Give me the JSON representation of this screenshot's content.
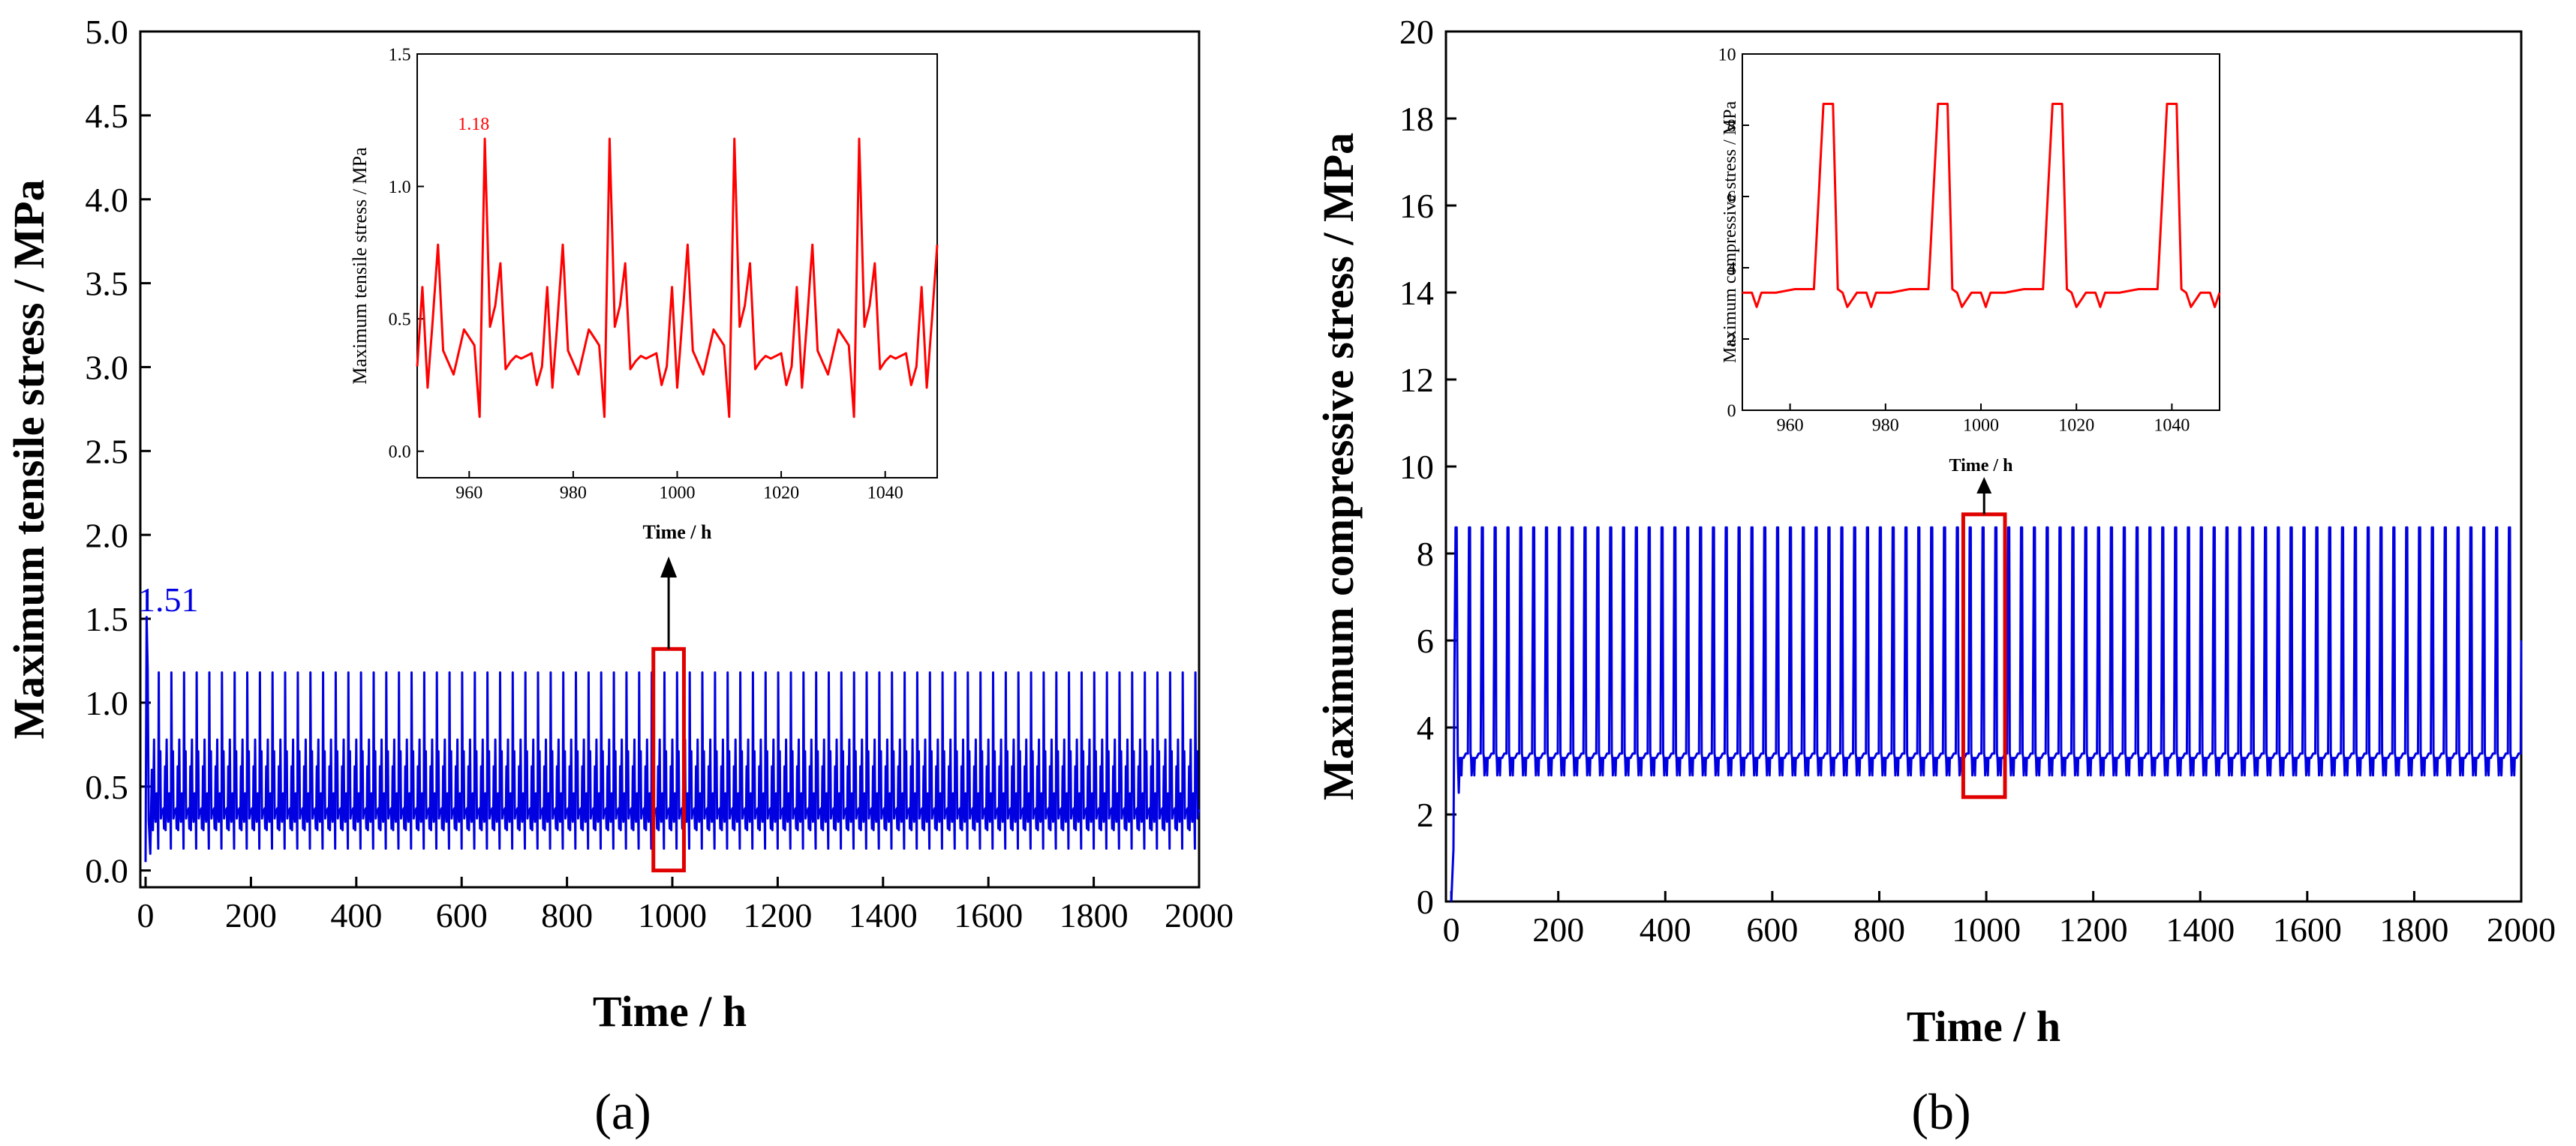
{
  "figure": {
    "panel_a_label": "(a)",
    "panel_b_label": "(b)",
    "colors": {
      "main_series": "#0000e0",
      "inset_series": "#ff0000",
      "highlight_box": "#e00000",
      "axis": "#000000"
    }
  },
  "chart_data": [
    {
      "id": "a-main",
      "type": "line",
      "title": "",
      "xlabel": "Time / h",
      "ylabel": "Maximum tensile stress / MPa",
      "xlim": [
        -10,
        2000
      ],
      "ylim": [
        -0.1,
        5.0
      ],
      "xticks": [
        0,
        200,
        400,
        600,
        800,
        1000,
        1200,
        1400,
        1600,
        1800,
        2000
      ],
      "yticks": [
        0.0,
        0.5,
        1.0,
        1.5,
        2.0,
        2.5,
        3.0,
        3.5,
        4.0,
        4.5,
        5.0
      ],
      "ytick_labels": [
        "0.0",
        "0.5",
        "1.0",
        "1.5",
        "2.0",
        "2.5",
        "3.0",
        "3.5",
        "4.0",
        "4.5",
        "5.0"
      ],
      "annotation": {
        "text": "1.51",
        "x": 0,
        "y": 1.51
      },
      "series": [
        {
          "name": "Maximum tensile stress",
          "period": 24,
          "initial_peak": 1.51,
          "cycle_times": [
            0,
            1,
            2,
            3,
            5,
            7,
            9,
            10,
            11,
            12,
            13,
            14,
            15,
            16,
            17,
            18,
            20,
            21,
            22,
            23,
            24
          ],
          "cycle_values": [
            0.24,
            0.5,
            0.78,
            0.38,
            0.29,
            0.46,
            0.4,
            0.13,
            1.18,
            0.47,
            0.55,
            0.71,
            0.31,
            0.34,
            0.36,
            0.35,
            0.37,
            0.25,
            0.32,
            0.62,
            0.24
          ]
        }
      ],
      "highlight": {
        "x": [
          964,
          1022
        ],
        "y": [
          0.0,
          1.32
        ]
      }
    },
    {
      "id": "a-inset",
      "type": "line",
      "xlabel": "Time / h",
      "ylabel": "Maximum tensile stress / MPa",
      "xlim": [
        950,
        1050
      ],
      "ylim": [
        -0.1,
        1.5
      ],
      "xticks": [
        960,
        980,
        1000,
        1020,
        1040
      ],
      "yticks": [
        0.0,
        0.5,
        1.0,
        1.5
      ],
      "ytick_labels": [
        "0.0",
        "0.5",
        "1.0",
        "1.5"
      ],
      "annotation": {
        "text": "1.18",
        "x": 961,
        "y": 1.18
      },
      "series": [
        {
          "name": "Maximum tensile stress (zoom)",
          "period": 24,
          "phase": 952,
          "cycle_times": [
            0,
            1,
            2,
            3,
            5,
            7,
            9,
            10,
            11,
            12,
            13,
            14,
            15,
            16,
            17,
            18,
            20,
            21,
            22,
            23,
            24
          ],
          "cycle_values": [
            0.24,
            0.5,
            0.78,
            0.38,
            0.29,
            0.46,
            0.4,
            0.13,
            1.18,
            0.47,
            0.55,
            0.71,
            0.31,
            0.34,
            0.36,
            0.35,
            0.37,
            0.25,
            0.32,
            0.62,
            0.24
          ]
        }
      ]
    },
    {
      "id": "b-main",
      "type": "line",
      "title": "",
      "xlabel": "Time / h",
      "ylabel": "Maximum compressive stress / MPa",
      "xlim": [
        -10,
        2000
      ],
      "ylim": [
        0,
        20
      ],
      "xticks": [
        0,
        200,
        400,
        600,
        800,
        1000,
        1200,
        1400,
        1600,
        1800,
        2000
      ],
      "yticks": [
        0,
        2,
        4,
        6,
        8,
        10,
        12,
        14,
        16,
        18,
        20
      ],
      "ytick_labels": [
        "0",
        "2",
        "4",
        "6",
        "8",
        "10",
        "12",
        "14",
        "16",
        "18",
        "20"
      ],
      "series": [
        {
          "name": "Maximum compressive stress",
          "period": 24,
          "startup_dip": 2.5,
          "cycle_times": [
            0,
            1,
            2,
            3,
            5,
            9,
            13,
            15,
            17,
            18,
            19,
            20,
            22,
            24
          ],
          "cycle_values": [
            3.3,
            2.9,
            3.3,
            3.3,
            3.3,
            3.4,
            3.4,
            8.6,
            8.6,
            3.4,
            3.3,
            2.9,
            3.3,
            3.3
          ]
        }
      ],
      "highlight": {
        "x": [
          957,
          1035
        ],
        "y": [
          2.4,
          8.9
        ]
      }
    },
    {
      "id": "b-inset",
      "type": "line",
      "xlabel": "Time / h",
      "ylabel": "Maximum compressive stress / MPa",
      "xlim": [
        950,
        1050
      ],
      "ylim": [
        0,
        10
      ],
      "xticks": [
        960,
        980,
        1000,
        1020,
        1040
      ],
      "yticks": [
        0,
        2,
        4,
        6,
        8,
        10
      ],
      "ytick_labels": [
        "0",
        "2",
        "4",
        "6",
        "8",
        "10"
      ],
      "series": [
        {
          "name": "Maximum compressive stress (zoom)",
          "period": 24,
          "phase": 952,
          "cycle_times": [
            0,
            1,
            2,
            3,
            5,
            9,
            13,
            15,
            17,
            18,
            19,
            20,
            22,
            24
          ],
          "cycle_values": [
            3.3,
            2.9,
            3.3,
            3.3,
            3.3,
            3.4,
            3.4,
            8.6,
            8.6,
            3.4,
            3.3,
            2.9,
            3.3,
            3.3
          ]
        }
      ]
    }
  ]
}
